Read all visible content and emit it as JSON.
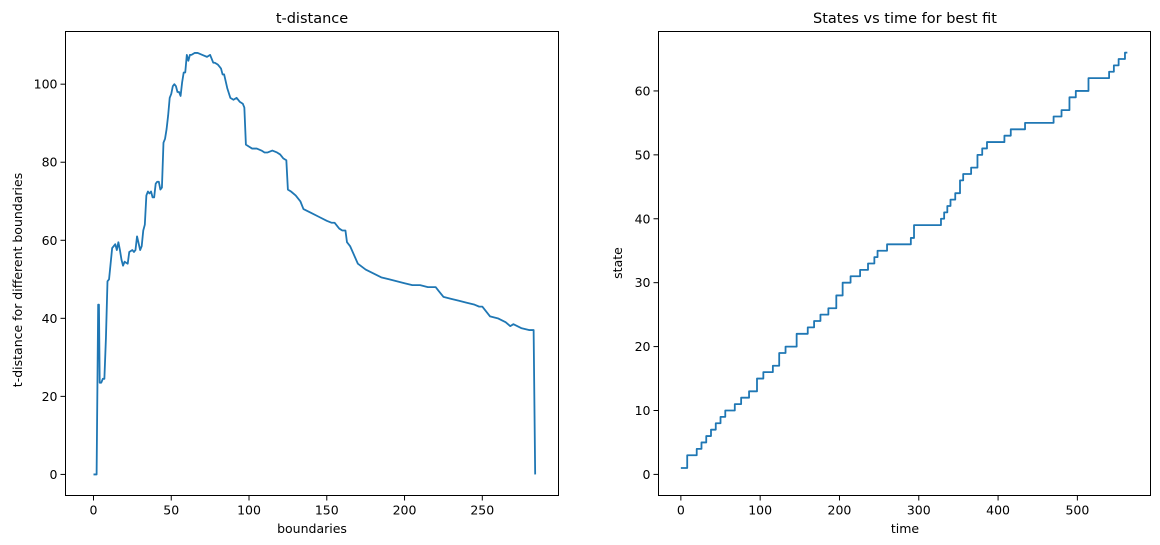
{
  "chart_data": [
    {
      "type": "line",
      "title": "t-distance",
      "xlabel": "boundaries",
      "ylabel": "t-distance for different boundaries",
      "xlim": [
        -18,
        299
      ],
      "ylim": [
        -5.4,
        113.5
      ],
      "xticks": [
        0,
        50,
        100,
        150,
        200,
        250
      ],
      "yticks": [
        0,
        20,
        40,
        60,
        80,
        100
      ],
      "grid": false,
      "color": "#1f77b4",
      "series": [
        {
          "x": [
            0,
            2,
            3,
            3.5,
            4,
            5,
            6,
            7,
            8,
            9,
            10,
            12,
            14,
            15,
            16,
            17,
            18,
            19,
            20,
            22,
            23,
            25,
            26,
            27,
            28,
            30,
            31,
            32,
            33,
            34,
            35,
            36,
            37,
            38,
            39,
            40,
            41,
            42,
            43,
            44,
            45,
            46,
            47,
            48,
            49,
            50,
            51,
            52,
            53,
            54,
            55,
            56,
            57,
            58,
            59,
            60,
            61,
            62,
            63,
            65,
            67,
            70,
            73,
            75,
            77,
            78,
            80,
            81,
            82,
            83,
            84,
            86,
            88,
            90,
            92,
            94,
            96,
            97,
            98,
            100,
            102,
            105,
            108,
            110,
            112,
            115,
            118,
            120,
            122,
            124,
            125,
            127,
            130,
            133,
            135,
            140,
            145,
            150,
            153,
            155,
            158,
            160,
            162,
            163,
            165,
            170,
            175,
            180,
            185,
            190,
            195,
            200,
            205,
            210,
            215,
            220,
            222,
            225,
            230,
            235,
            240,
            245,
            248,
            250,
            255,
            260,
            265,
            268,
            270,
            275,
            280,
            283,
            284
          ],
          "y": [
            0,
            0,
            43.5,
            43.5,
            23.5,
            23.5,
            24.5,
            24.5,
            35,
            49.5,
            50,
            58,
            59,
            57.5,
            59.5,
            57.5,
            55,
            53.5,
            54.5,
            54,
            57,
            57.5,
            57,
            57.5,
            61,
            57.5,
            58.5,
            62.5,
            64,
            71.5,
            72.5,
            72,
            72.5,
            71,
            71,
            74.5,
            75,
            75,
            73,
            73.5,
            85,
            86,
            88.5,
            92,
            96.5,
            97.5,
            99.5,
            100,
            99.5,
            98,
            98,
            97,
            100.5,
            103,
            103,
            107.5,
            106,
            107.5,
            107.5,
            108,
            108,
            107.5,
            107,
            107.5,
            105.5,
            105.5,
            105,
            104.5,
            104,
            102.5,
            102.5,
            99,
            96.5,
            96,
            96.5,
            95.5,
            95,
            94,
            84.5,
            84,
            83.5,
            83.5,
            83,
            82.5,
            82.5,
            83,
            82.5,
            82,
            81,
            80.5,
            73,
            72.5,
            71.5,
            70,
            68,
            67,
            66,
            65,
            64.5,
            64.5,
            63,
            62.5,
            62.5,
            59.5,
            58.5,
            54,
            52.5,
            51.5,
            50.5,
            50,
            49.5,
            49,
            48.5,
            48.5,
            48,
            48,
            47,
            45.5,
            45,
            44.5,
            44,
            43.5,
            43,
            43,
            40.5,
            40,
            39,
            38,
            38.5,
            37.5,
            37,
            37,
            0
          ]
        }
      ]
    },
    {
      "type": "line",
      "title": "States vs time for best fit",
      "xlabel": "time",
      "ylabel": "state",
      "xlim": [
        -28.2,
        592.2
      ],
      "ylim": [
        -3.3,
        69.3
      ],
      "xticks": [
        0,
        100,
        200,
        300,
        400,
        500
      ],
      "yticks": [
        0,
        10,
        20,
        30,
        40,
        50,
        60
      ],
      "grid": false,
      "color": "#1f77b4",
      "series": [
        {
          "x": [
            0,
            8,
            8,
            20,
            20,
            26,
            26,
            32,
            32,
            38,
            38,
            44,
            44,
            50,
            50,
            56,
            56,
            68,
            68,
            76,
            76,
            86,
            86,
            96,
            96,
            104,
            104,
            116,
            116,
            124,
            124,
            132,
            132,
            146,
            146,
            160,
            160,
            168,
            168,
            176,
            176,
            186,
            186,
            196,
            196,
            204,
            204,
            214,
            214,
            226,
            226,
            236,
            236,
            244,
            244,
            248,
            248,
            260,
            260,
            290,
            290,
            294,
            294,
            328,
            328,
            332,
            332,
            336,
            336,
            340,
            340,
            346,
            346,
            352,
            352,
            356,
            356,
            366,
            366,
            374,
            374,
            380,
            380,
            386,
            386,
            408,
            408,
            416,
            416,
            434,
            434,
            470,
            470,
            480,
            480,
            490,
            490,
            498,
            498,
            514,
            514,
            540,
            540,
            546,
            546,
            552,
            552,
            560,
            560,
            563
          ],
          "y": [
            1,
            1,
            3,
            3,
            4,
            4,
            5,
            5,
            6,
            6,
            7,
            7,
            8,
            8,
            9,
            9,
            10,
            10,
            11,
            11,
            12,
            12,
            13,
            13,
            15,
            15,
            16,
            16,
            17,
            17,
            19,
            19,
            20,
            20,
            22,
            22,
            23,
            23,
            24,
            24,
            25,
            25,
            26,
            26,
            28,
            28,
            30,
            30,
            31,
            31,
            32,
            32,
            33,
            33,
            34,
            34,
            35,
            35,
            36,
            36,
            37,
            37,
            39,
            39,
            40,
            40,
            41,
            41,
            42,
            42,
            43,
            43,
            44,
            44,
            46,
            46,
            47,
            47,
            48,
            48,
            50,
            50,
            51,
            51,
            52,
            52,
            53,
            53,
            54,
            54,
            55,
            55,
            56,
            56,
            57,
            57,
            59,
            59,
            60,
            60,
            62,
            62,
            63,
            63,
            64,
            64,
            65,
            65,
            66,
            66
          ]
        }
      ]
    }
  ]
}
